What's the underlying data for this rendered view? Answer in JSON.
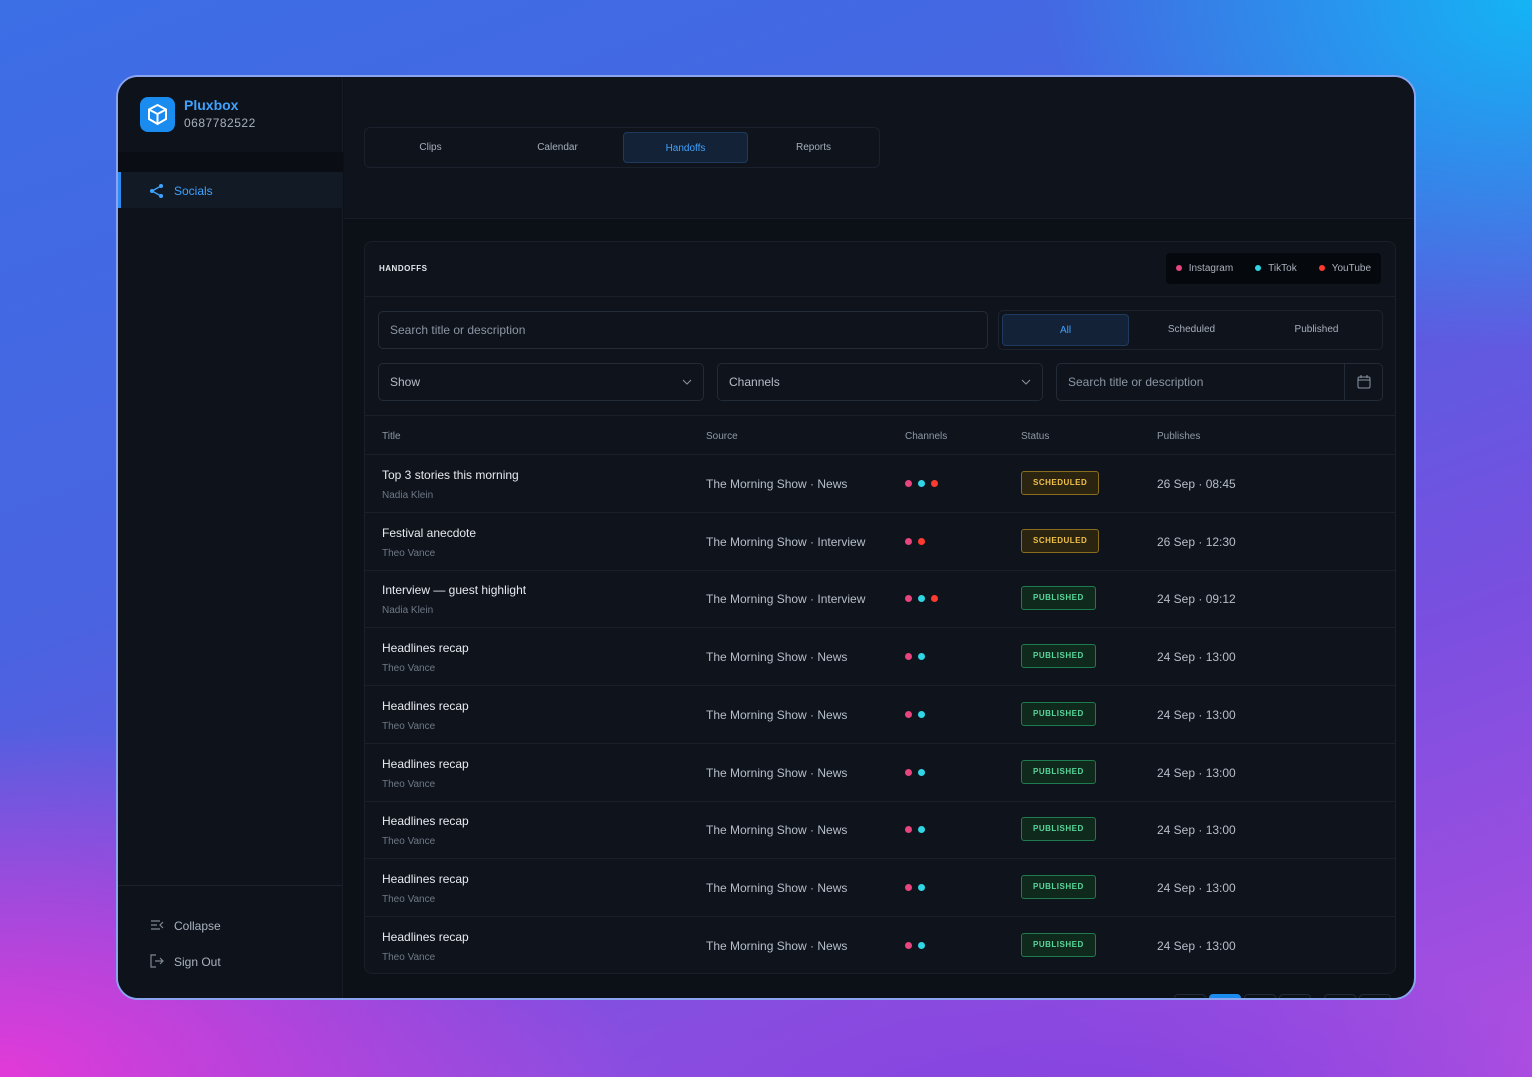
{
  "brand": {
    "name": "Pluxbox",
    "account": "0687782522"
  },
  "nav": [
    {
      "label": "Socials"
    }
  ],
  "footer_nav": [
    "Collapse",
    "Sign Out"
  ],
  "tabs": [
    "Clips",
    "Calendar",
    "Handoffs",
    "Reports"
  ],
  "panel": {
    "title": "HANDOFFS",
    "legend": [
      {
        "name": "Instagram",
        "color": "#e8457e"
      },
      {
        "name": "TikTok",
        "color": "#2fd6e6"
      },
      {
        "name": "YouTube",
        "color": "#ff3b30"
      }
    ],
    "search_placeholder": "Search title or description",
    "filters": [
      "All",
      "Scheduled",
      "Published"
    ],
    "selects": [
      "Show",
      "Channels"
    ],
    "date_placeholder": "Search title or description"
  },
  "table": {
    "columns": [
      "Title",
      "Source",
      "Channels",
      "Status",
      "Publishes"
    ],
    "rows": [
      {
        "title": "Top 3 stories this morning",
        "author": "Nadia Klein",
        "source": "The Morning Show · News",
        "channels": [
          "Instagram",
          "TikTok",
          "YouTube"
        ],
        "status": "SCHEDULED",
        "publishes": "26 Sep · 08:45"
      },
      {
        "title": "Festival anecdote",
        "author": "Theo Vance",
        "source": "The Morning Show · Interview",
        "channels": [
          "Instagram",
          "YouTube"
        ],
        "status": "SCHEDULED",
        "publishes": "26 Sep · 12:30"
      },
      {
        "title": "Interview — guest highlight",
        "author": "Nadia Klein",
        "source": "The Morning Show · Interview",
        "channels": [
          "Instagram",
          "TikTok",
          "YouTube"
        ],
        "status": "PUBLISHED",
        "publishes": "24 Sep · 09:12"
      },
      {
        "title": "Headlines recap",
        "author": "Theo Vance",
        "source": "The Morning Show · News",
        "channels": [
          "Instagram",
          "TikTok"
        ],
        "status": "PUBLISHED",
        "publishes": "24 Sep · 13:00"
      },
      {
        "title": "Headlines recap",
        "author": "Theo Vance",
        "source": "The Morning Show · News",
        "channels": [
          "Instagram",
          "TikTok"
        ],
        "status": "PUBLISHED",
        "publishes": "24 Sep · 13:00"
      },
      {
        "title": "Headlines recap",
        "author": "Theo Vance",
        "source": "The Morning Show · News",
        "channels": [
          "Instagram",
          "TikTok"
        ],
        "status": "PUBLISHED",
        "publishes": "24 Sep · 13:00"
      },
      {
        "title": "Headlines recap",
        "author": "Theo Vance",
        "source": "The Morning Show · News",
        "channels": [
          "Instagram",
          "TikTok"
        ],
        "status": "PUBLISHED",
        "publishes": "24 Sep · 13:00"
      },
      {
        "title": "Headlines recap",
        "author": "Theo Vance",
        "source": "The Morning Show · News",
        "channels": [
          "Instagram",
          "TikTok"
        ],
        "status": "PUBLISHED",
        "publishes": "24 Sep · 13:00"
      },
      {
        "title": "Headlines recap",
        "author": "Theo Vance",
        "source": "The Morning Show · News",
        "channels": [
          "Instagram",
          "TikTok"
        ],
        "status": "PUBLISHED",
        "publishes": "24 Sep · 13:00"
      }
    ]
  }
}
